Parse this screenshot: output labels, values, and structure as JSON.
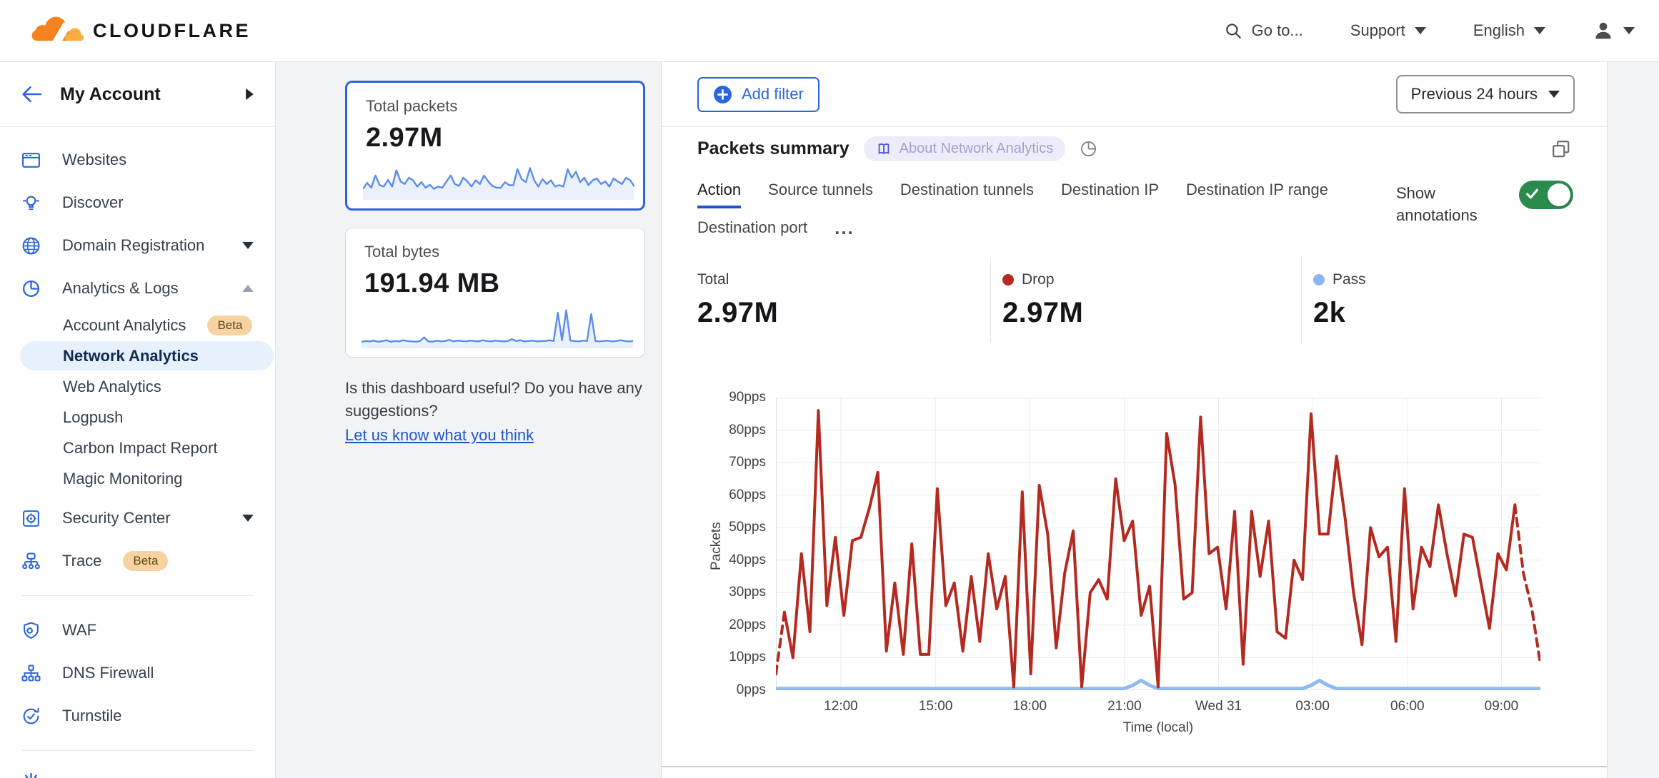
{
  "header": {
    "logo_text": "CLOUDFLARE",
    "goto_label": "Go to...",
    "support_label": "Support",
    "language_label": "English"
  },
  "sidebar": {
    "account_label": "My Account",
    "items": [
      {
        "label": "Websites",
        "icon": "browser"
      },
      {
        "label": "Discover",
        "icon": "bulb"
      },
      {
        "label": "Domain Registration",
        "icon": "globe",
        "caret": "down"
      },
      {
        "label": "Analytics & Logs",
        "icon": "pie",
        "caret": "up"
      },
      {
        "label": "Account Analytics",
        "sub": true,
        "badge": "Beta"
      },
      {
        "label": "Network Analytics",
        "sub": true,
        "selected": true
      },
      {
        "label": "Web Analytics",
        "sub": true
      },
      {
        "label": "Logpush",
        "sub": true
      },
      {
        "label": "Carbon Impact Report",
        "sub": true
      },
      {
        "label": "Magic Monitoring",
        "sub": true
      },
      {
        "label": "Security Center",
        "icon": "safe",
        "caret": "down"
      },
      {
        "label": "Trace",
        "icon": "trace",
        "badge": "Beta"
      },
      {
        "divider": true
      },
      {
        "label": "WAF",
        "icon": "shield"
      },
      {
        "label": "DNS Firewall",
        "icon": "nodes"
      },
      {
        "label": "Turnstile",
        "icon": "turnstile"
      },
      {
        "divider": true
      },
      {
        "label": "",
        "icon": "burst",
        "partial": true
      }
    ]
  },
  "summary_cards": [
    {
      "title": "Total packets",
      "value": "2.97M",
      "selected": true,
      "trend": [
        22,
        38,
        25,
        58,
        32,
        28,
        46,
        28,
        72,
        42,
        35,
        52,
        45,
        28,
        40,
        25,
        33,
        22,
        28,
        25,
        42,
        58,
        35,
        30,
        52,
        42,
        28,
        45,
        35,
        58,
        42,
        30,
        25,
        25,
        40,
        32,
        32,
        75,
        48,
        40,
        78,
        45,
        28,
        48,
        35,
        45,
        28,
        32,
        28,
        75,
        52,
        68,
        40,
        52,
        32,
        45,
        50,
        35,
        42,
        28,
        50,
        42,
        35,
        52,
        45,
        28
      ]
    },
    {
      "title": "Total bytes",
      "value": "191.94 MB",
      "selected": false,
      "trend": [
        10,
        12,
        11,
        13,
        10,
        12,
        14,
        10,
        12,
        11,
        14,
        12,
        11,
        10,
        12,
        22,
        11,
        10,
        13,
        11,
        12,
        15,
        11,
        13,
        12,
        11,
        13,
        12,
        11,
        14,
        12,
        11,
        13,
        12,
        11,
        12,
        17,
        12,
        14,
        11,
        12,
        13,
        11,
        12,
        12,
        14,
        12,
        88,
        14,
        95,
        13,
        12,
        11,
        13,
        12,
        85,
        12,
        11,
        12,
        13,
        11,
        12,
        14,
        12,
        11,
        12
      ]
    }
  ],
  "feedback": {
    "line1": "Is this dashboard useful? Do you have any",
    "line2": "suggestions?",
    "link": "Let us know what you think"
  },
  "toolbar": {
    "add_filter_label": "Add filter",
    "time_range_label": "Previous 24 hours"
  },
  "panel": {
    "title": "Packets summary",
    "about_badge": "About Network Analytics",
    "tabs_row1": [
      "Action",
      "Source tunnels",
      "Destination tunnels",
      "Destination IP",
      "Destination IP range"
    ],
    "tabs_row2": [
      "Destination port"
    ],
    "active_tab": "Action",
    "more_label": "...",
    "show_annotations_label": "Show annotations",
    "annotations_on": true
  },
  "stats": [
    {
      "label": "Total",
      "value": "2.97M"
    },
    {
      "label": "Drop",
      "value": "2.97M",
      "dot": "#b42a20"
    },
    {
      "label": "Pass",
      "value": "2k",
      "dot": "#8ab6f4"
    }
  ],
  "chart_data": {
    "type": "line",
    "title": "Packets summary",
    "xlabel": "Time (local)",
    "ylabel": "Packets",
    "y_unit": "pps",
    "ylim": [
      0,
      90
    ],
    "y_ticks": [
      0,
      10,
      20,
      30,
      40,
      50,
      60,
      70,
      80,
      90
    ],
    "x_ticks": [
      {
        "label": "12:00",
        "pos": 0.085
      },
      {
        "label": "15:00",
        "pos": 0.209
      },
      {
        "label": "18:00",
        "pos": 0.332
      },
      {
        "label": "21:00",
        "pos": 0.456
      },
      {
        "label": "Wed 31",
        "pos": 0.579
      },
      {
        "label": "03:00",
        "pos": 0.702
      },
      {
        "label": "06:00",
        "pos": 0.826
      },
      {
        "label": "09:00",
        "pos": 0.949
      }
    ],
    "grid": true,
    "legend_position": "none",
    "series": [
      {
        "name": "Drop",
        "color": "#b42a20",
        "dashed_head": 1,
        "dashed_tail": 3,
        "values": [
          5,
          24,
          10,
          42,
          18,
          86,
          26,
          47,
          23,
          46,
          47,
          56,
          67,
          12,
          33,
          11,
          45,
          11,
          11,
          62,
          26,
          33,
          12,
          35,
          15,
          42,
          25,
          35,
          1,
          61,
          5,
          63,
          48,
          13,
          36,
          49,
          1,
          30,
          34,
          28,
          65,
          46,
          52,
          23,
          32,
          1,
          79,
          63,
          28,
          30,
          84,
          42,
          44,
          25,
          55,
          8,
          55,
          35,
          52,
          18,
          16,
          40,
          34,
          85,
          48,
          48,
          72,
          53,
          30,
          14,
          50,
          41,
          44,
          15,
          62,
          25,
          44,
          38,
          57,
          42,
          29,
          48,
          47,
          33,
          19,
          42,
          37,
          57,
          36,
          25,
          8
        ]
      },
      {
        "name": "Pass",
        "color": "#8fbbf2",
        "values": [
          0.5,
          0.5,
          0.5,
          0.5,
          0.5,
          0.5,
          0.5,
          0.5,
          0.5,
          0.5,
          0.5,
          0.5,
          0.5,
          0.5,
          0.5,
          0.5,
          0.5,
          0.5,
          0.5,
          0.5,
          0.5,
          0.5,
          0.5,
          0.5,
          0.5,
          0.5,
          0.5,
          0.5,
          0.5,
          0.5,
          0.5,
          0.5,
          0.5,
          0.5,
          0.5,
          0.5,
          0.5,
          0.5,
          0.5,
          0.5,
          0.5,
          0.5,
          1.5,
          3,
          1.5,
          0.5,
          0.5,
          0.5,
          0.5,
          0.5,
          0.5,
          0.5,
          0.5,
          0.5,
          0.5,
          0.5,
          0.5,
          0.5,
          0.5,
          0.5,
          0.5,
          0.5,
          0.5,
          1.5,
          3,
          1.5,
          0.5,
          0.5,
          0.5,
          0.5,
          0.5,
          0.5,
          0.5,
          0.5,
          0.5,
          0.5,
          0.5,
          0.5,
          0.5,
          0.5,
          0.5,
          0.5,
          0.5,
          0.5,
          0.5,
          0.5,
          0.5,
          0.5,
          0.5,
          0.5,
          0.5
        ]
      }
    ]
  },
  "colors": {
    "accent_blue": "#2c64dc",
    "drop_red": "#b42a20",
    "pass_blue": "#8ab6f4",
    "toggle_green": "#2a8b4c",
    "beta_badge_bg": "#f8d3a2",
    "selected_item_bg": "#e7f1fc",
    "about_badge_bg": "#edecf9",
    "about_badge_text": "#a39fd4"
  }
}
